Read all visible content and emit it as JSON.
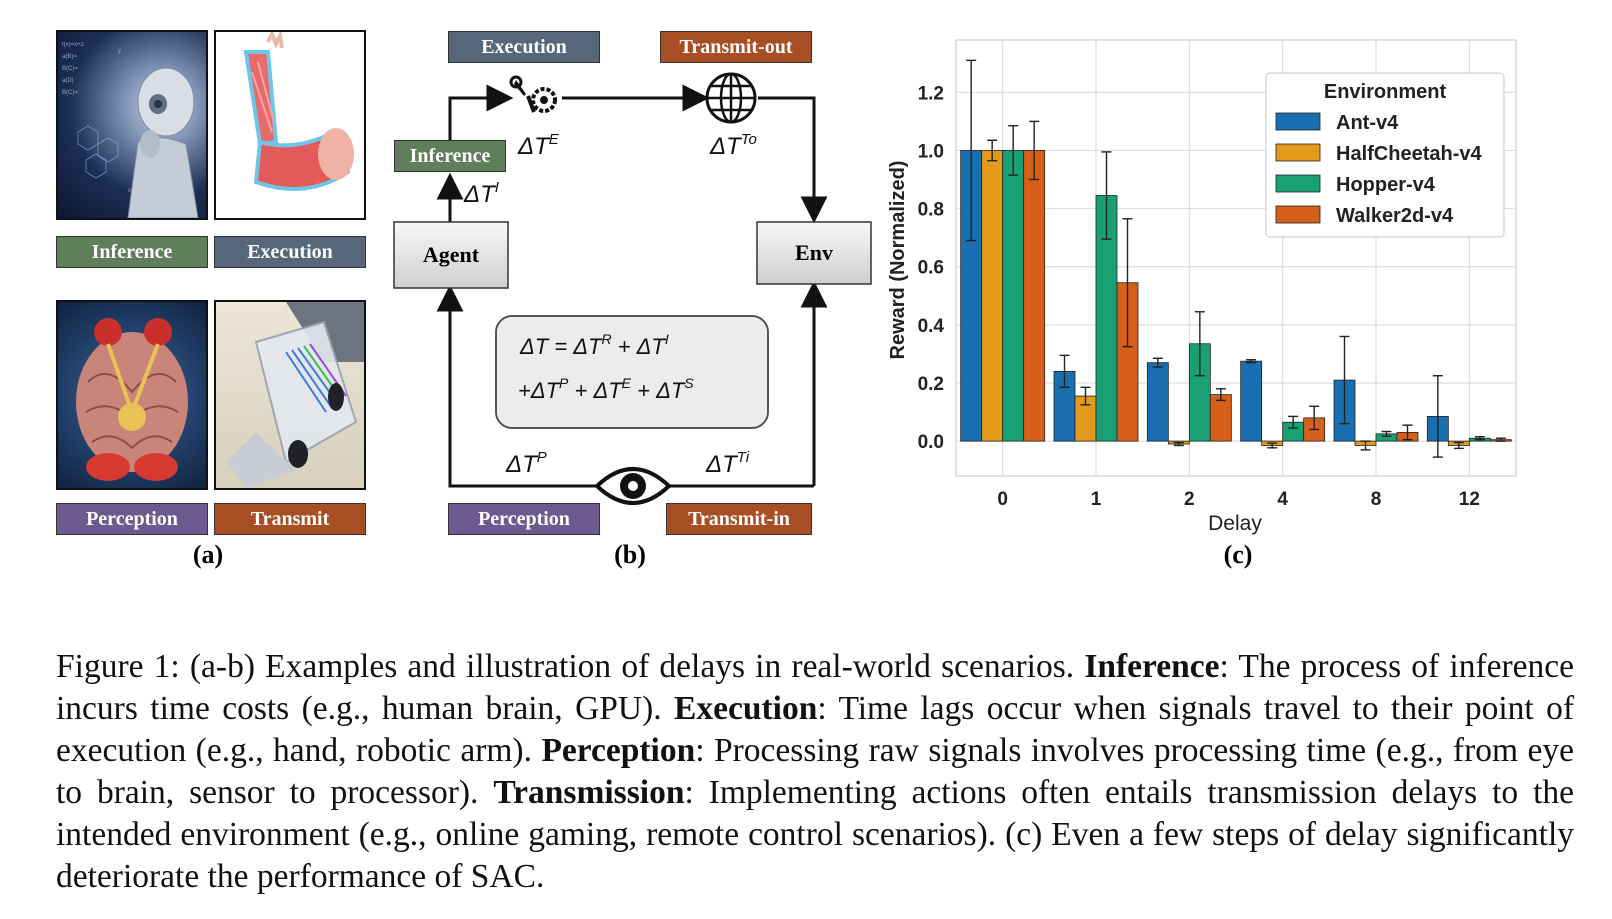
{
  "panel_a": {
    "top_labels": [
      "Inference",
      "Execution"
    ],
    "bottom_labels": [
      "Perception",
      "Transmit"
    ],
    "sublabel": "(a)"
  },
  "panel_b": {
    "labels": {
      "execution": "Execution",
      "transmit_out": "Transmit-out",
      "inference": "Inference",
      "agent": "Agent",
      "env": "Env",
      "perception": "Perception",
      "transmit_in": "Transmit-in"
    },
    "sublabel": "(b)"
  },
  "chart_data": {
    "type": "bar",
    "categories": [
      "0",
      "1",
      "2",
      "4",
      "8",
      "12"
    ],
    "series": [
      {
        "name": "Ant-v4",
        "color": "#1a6fb0",
        "values": [
          1.0,
          0.24,
          0.27,
          0.275,
          0.21,
          0.085
        ],
        "err": [
          0.31,
          0.055,
          0.015,
          0.005,
          0.15,
          0.14
        ]
      },
      {
        "name": "HalfCheetah-v4",
        "color": "#e39a1b",
        "values": [
          1.0,
          0.155,
          -0.01,
          -0.015,
          -0.015,
          -0.015
        ],
        "err": [
          0.035,
          0.03,
          0.005,
          0.008,
          0.015,
          0.01
        ]
      },
      {
        "name": "Hopper-v4",
        "color": "#19a175",
        "values": [
          1.0,
          0.845,
          0.335,
          0.065,
          0.025,
          0.01
        ],
        "err": [
          0.085,
          0.15,
          0.11,
          0.02,
          0.008,
          0.005
        ]
      },
      {
        "name": "Walker2d-v4",
        "color": "#d6601a",
        "values": [
          1.0,
          0.545,
          0.16,
          0.08,
          0.03,
          0.005
        ],
        "err": [
          0.1,
          0.22,
          0.02,
          0.04,
          0.025,
          0.005
        ]
      }
    ],
    "xlabel": "Delay",
    "ylabel": "Reward (Normalized)",
    "ylim": [
      -0.12,
      1.38
    ],
    "yticks": [
      "0.0",
      "0.2",
      "0.4",
      "0.6",
      "0.8",
      "1.0",
      "1.2"
    ],
    "legend_title": "Environment",
    "legend_position": "top-right",
    "grid": true,
    "sublabel": "(c)"
  },
  "caption": {
    "s1": "Figure 1: (a-b) Examples and illustration of delays in real-world scenarios. ",
    "b1": "Inference",
    "s2": ": The process of inference incurs time costs (e.g., human brain, GPU). ",
    "b2": "Execution",
    "s3": ": Time lags occur when signals travel to their point of execution (e.g., hand, robotic arm). ",
    "b3": "Perception",
    "s4": ": Processing raw signals involves processing time (e.g., from eye to brain, sensor to processor). ",
    "b4": "Transmission",
    "s5": ": Implementing actions often entails transmission delays to the intended environment (e.g., online gaming, remote control scenarios). (c) Even a few steps of delay significantly deteriorate the performance of SAC."
  }
}
